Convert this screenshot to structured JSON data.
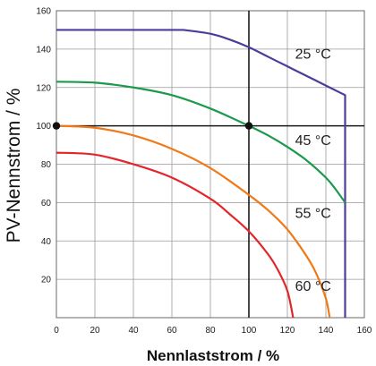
{
  "chart_data": {
    "type": "line",
    "xlabel": "Nennlaststrom / %",
    "ylabel": "PV-Nennstrom / %",
    "xlim": [
      0,
      160
    ],
    "ylim": [
      0,
      160
    ],
    "xticks": [
      0,
      20,
      40,
      60,
      80,
      100,
      120,
      140,
      160
    ],
    "yticks": [
      20,
      40,
      60,
      80,
      100,
      120,
      140,
      160
    ],
    "grid": true,
    "reference_lines": {
      "x": 100,
      "y": 100,
      "color": "#1a1a1a"
    },
    "reference_points": [
      {
        "x": 0,
        "y": 100
      },
      {
        "x": 100,
        "y": 100
      }
    ],
    "series": [
      {
        "name": "25 °C",
        "color": "#4b3d9a",
        "x": [
          0,
          66,
          80,
          90,
          100,
          110,
          120,
          130,
          140,
          148,
          150,
          150
        ],
        "y": [
          150,
          150,
          148,
          145,
          141,
          136,
          131,
          126,
          121,
          117,
          116,
          0
        ]
      },
      {
        "name": "45 °C",
        "color": "#1a9a4a",
        "x": [
          0,
          20,
          40,
          60,
          80,
          100,
          110,
          120,
          130,
          140,
          145,
          150
        ],
        "y": [
          123,
          122.5,
          120,
          116,
          109,
          100,
          95,
          89,
          82,
          73,
          67,
          60
        ]
      },
      {
        "name": "55 °C",
        "color": "#f07a18",
        "x": [
          0,
          20,
          40,
          60,
          80,
          100,
          110,
          120,
          130,
          135,
          140,
          142
        ],
        "y": [
          100,
          99,
          95,
          88,
          78,
          64,
          56,
          46,
          32,
          23,
          10,
          0
        ]
      },
      {
        "name": "60 °C",
        "color": "#e2262b",
        "x": [
          0,
          20,
          40,
          60,
          80,
          90,
          100,
          110,
          115,
          120,
          123
        ],
        "y": [
          86,
          85,
          80,
          73,
          62,
          54,
          45,
          33,
          25,
          14,
          0
        ]
      }
    ],
    "annotations": [
      {
        "text": "25 °C",
        "x": 124,
        "y": 135
      },
      {
        "text": "45 °C",
        "x": 124,
        "y": 90
      },
      {
        "text": "55 °C",
        "x": 124,
        "y": 52
      },
      {
        "text": "60 °C",
        "x": 124,
        "y": 14
      }
    ]
  }
}
